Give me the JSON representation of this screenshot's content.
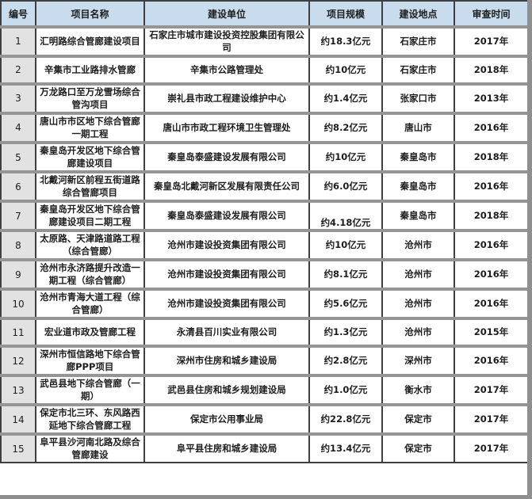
{
  "colors": {
    "header_bg": "#c9dcee",
    "row_number_bg": "#e2e2e2",
    "cell_bg": "#ffffff",
    "border_dark": "#3f3f3f",
    "row_separator": "#959595",
    "shadow": "#8f8f8f",
    "text": "#1d1d1d"
  },
  "table": {
    "columns": [
      {
        "key": "id",
        "label": "编号"
      },
      {
        "key": "name",
        "label": "项目名称"
      },
      {
        "key": "unit",
        "label": "建设单位"
      },
      {
        "key": "scale",
        "label": "项目规模"
      },
      {
        "key": "location",
        "label": "建设地点"
      },
      {
        "key": "time",
        "label": "审查时间"
      }
    ],
    "rows": [
      {
        "id": "1",
        "name": "汇明路综合管廊建设项目",
        "unit": "石家庄市城市建设投资控股集团有限公司",
        "scale": "约18.3亿元",
        "location": "石家庄市",
        "time": "2017年"
      },
      {
        "id": "2",
        "name": "辛集市工业路排水管廊",
        "unit": "辛集市公路管理处",
        "scale": "约10亿元",
        "location": "石家庄市",
        "time": "2018年"
      },
      {
        "id": "3",
        "name": "万龙路口至万龙雪场综合管沟项目",
        "unit": "崇礼县市政工程建设维护中心",
        "scale": "约1.4亿元",
        "location": "张家口市",
        "time": "2013年"
      },
      {
        "id": "4",
        "name": "唐山市市区地下综合管廊一期工程",
        "unit": "唐山市市政工程环境卫生管理处",
        "scale": "约8.2亿元",
        "location": "唐山市",
        "time": "2016年"
      },
      {
        "id": "5",
        "name": "秦皇岛开发区地下综合管廊建设项目",
        "unit": "秦皇岛泰盛建设发展有限公司",
        "scale": "约10亿元",
        "location": "秦皇岛市",
        "time": "2018年"
      },
      {
        "id": "6",
        "name": "北戴河新区前程五街道路综合管廊项目",
        "unit": "秦皇岛北戴河新区发展有限责任公司",
        "scale": "约6.0亿元",
        "location": "秦皇岛市",
        "time": "2016年"
      },
      {
        "id": "7",
        "name": "秦皇岛开发区地下综合管廊建设项目二期工程",
        "unit": "秦皇岛泰盛建设发展有限公司",
        "scale": "约4.18亿元",
        "location": "秦皇岛市",
        "time": "2018年"
      },
      {
        "id": "8",
        "name": "太原路、天津路道路工程（综合管廊）",
        "unit": "沧州市建设投资集团有限公司",
        "scale": "约10亿元",
        "location": "沧州市",
        "time": "2016年"
      },
      {
        "id": "9",
        "name": "沧州市永济路提升改造一期工程（综合管廊）",
        "unit": "沧州市建设投资集团有限公司",
        "scale": "约8.1亿元",
        "location": "沧州市",
        "time": "2016年"
      },
      {
        "id": "10",
        "name": "沧州市青海大道工程（综合管廊）",
        "unit": "沧州市建设投资集团有限公司",
        "scale": "约5.6亿元",
        "location": "沧州市",
        "time": "2016年"
      },
      {
        "id": "11",
        "name": "宏业道市政及管廊工程",
        "unit": "永清县百川实业有限公司",
        "scale": "约1.3亿元",
        "location": "沧州市",
        "time": "2015年"
      },
      {
        "id": "12",
        "name": "深州市恒信路地下综合管廊PPP项目",
        "unit": "深州市住房和城乡建设局",
        "scale": "约2.8亿元",
        "location": "深州市",
        "time": "2016年"
      },
      {
        "id": "13",
        "name": "武邑县地下综合管廊（一期）",
        "unit": "武邑县住房和城乡规划建设局",
        "scale": "约1.0亿元",
        "location": "衡水市",
        "time": "2017年"
      },
      {
        "id": "14",
        "name": "保定市北三环、东风路西延地下综合管廊工程",
        "unit": "保定市公用事业局",
        "scale": "约22.8亿元",
        "location": "保定市",
        "time": "2017年"
      },
      {
        "id": "15",
        "name": "阜平县沙河南北路及综合管廊建设",
        "unit": "阜平县住房和城乡建设局",
        "scale": "约13.4亿元",
        "location": "保定市",
        "time": "2017年"
      }
    ]
  }
}
